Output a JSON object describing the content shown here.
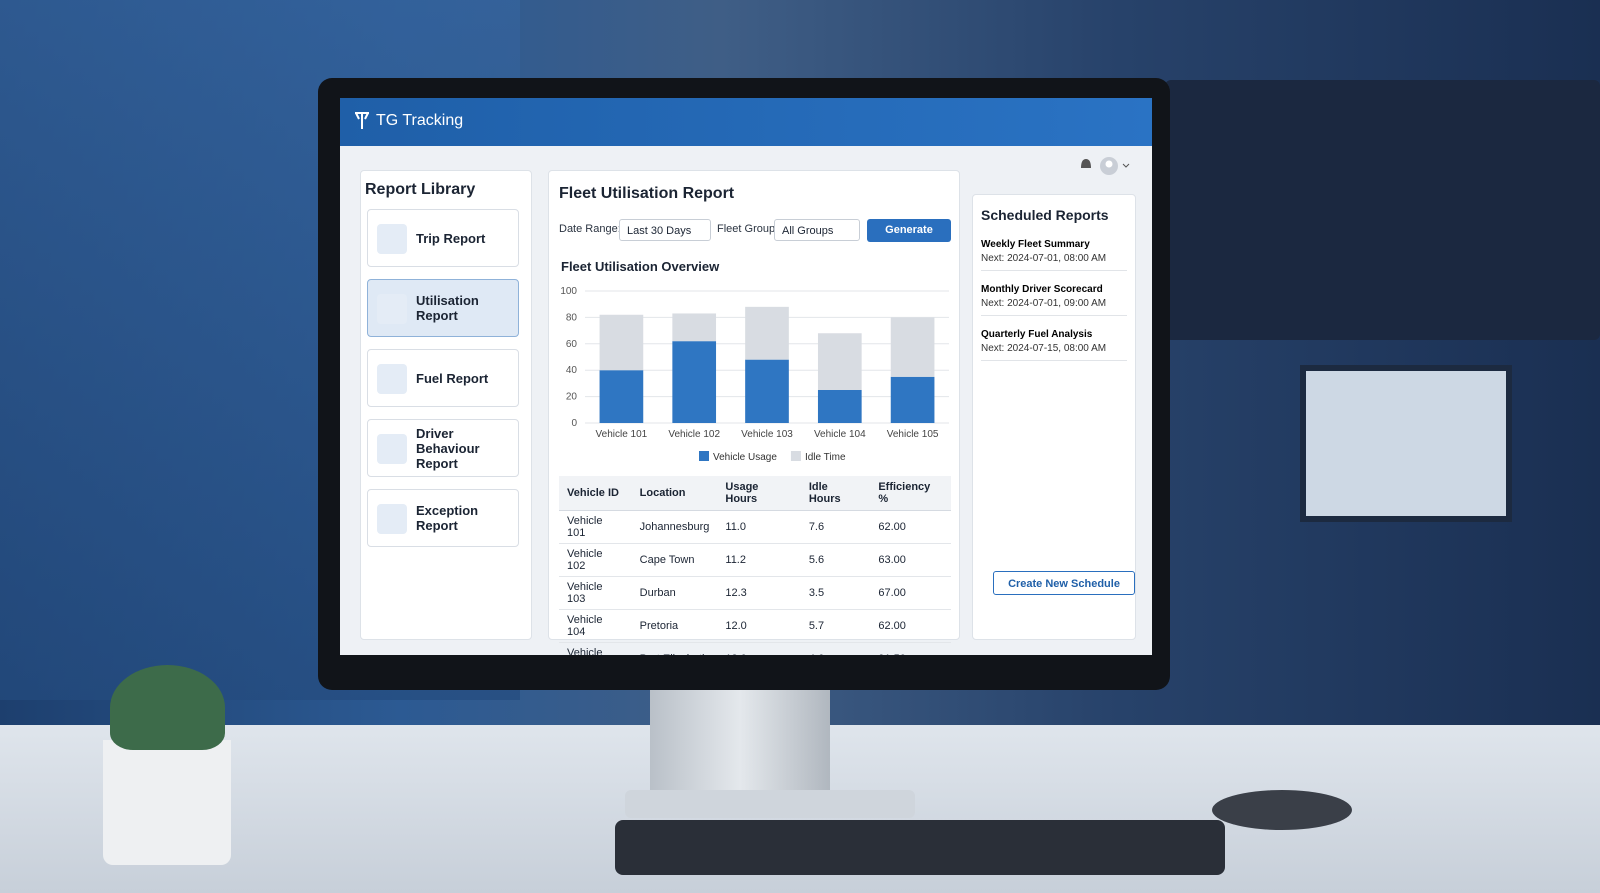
{
  "header": {
    "brand": "TG Tracking"
  },
  "sidebar": {
    "title": "Report Library",
    "items": [
      "Trip Report",
      "Utilisation Report",
      "Fuel Report",
      "Driver Behaviour Report",
      "Exception Report"
    ]
  },
  "report": {
    "title": "Fleet Utilisation Report",
    "filters": {
      "date_range_label": "Date Range:",
      "date_range": "Last 30 Days",
      "fleet_group_label": "Fleet Group:",
      "fleet_group": "All Groups"
    },
    "button": "Generate Report"
  },
  "chart_data": {
    "type": "bar",
    "stacked": true,
    "title": "Fleet Utilisation Overview",
    "categories": [
      "Vehicle 101",
      "Vehicle 102",
      "Vehicle 103",
      "Vehicle 104",
      "Vehicle 105"
    ],
    "series": [
      {
        "name": "Vehicle Usage",
        "color": "#2f76c2",
        "values": [
          40,
          62,
          48,
          25,
          35
        ]
      },
      {
        "name": "Idle Time",
        "color": "#d8dce2",
        "values": [
          42,
          21,
          40,
          43,
          45
        ]
      }
    ],
    "ylim": [
      0,
      100
    ],
    "yticks": [
      0,
      20,
      40,
      60,
      80,
      100
    ],
    "grid": true,
    "legend": "bottom"
  },
  "table": {
    "columns": [
      "Vehicle ID",
      "Location",
      "Usage Hours",
      "Idle Hours",
      "Efficiency %"
    ],
    "rows": [
      [
        "Vehicle 101",
        "Johannesburg",
        "11.0",
        "7.6",
        "62.00"
      ],
      [
        "Vehicle 102",
        "Cape Town",
        "11.2",
        "5.6",
        "63.00"
      ],
      [
        "Vehicle 103",
        "Durban",
        "12.3",
        "3.5",
        "67.00"
      ],
      [
        "Vehicle 104",
        "Pretoria",
        "12.0",
        "5.7",
        "62.00"
      ],
      [
        "Vehicle 105",
        "Port Elizabeth",
        "18.0",
        "4.6",
        "91.50"
      ]
    ]
  },
  "scheduled": {
    "title": "Scheduled Reports",
    "items": [
      {
        "name": "Weekly Fleet Summary",
        "next": "Next: 2024-07-01, 08:00 AM"
      },
      {
        "name": "Monthly Driver Scorecard",
        "next": "Next: 2024-07-01, 09:00 AM"
      },
      {
        "name": "Quarterly Fuel Analysis",
        "next": "Next: 2024-07-15, 08:00 AM"
      }
    ],
    "button": "Create New Schedule"
  }
}
